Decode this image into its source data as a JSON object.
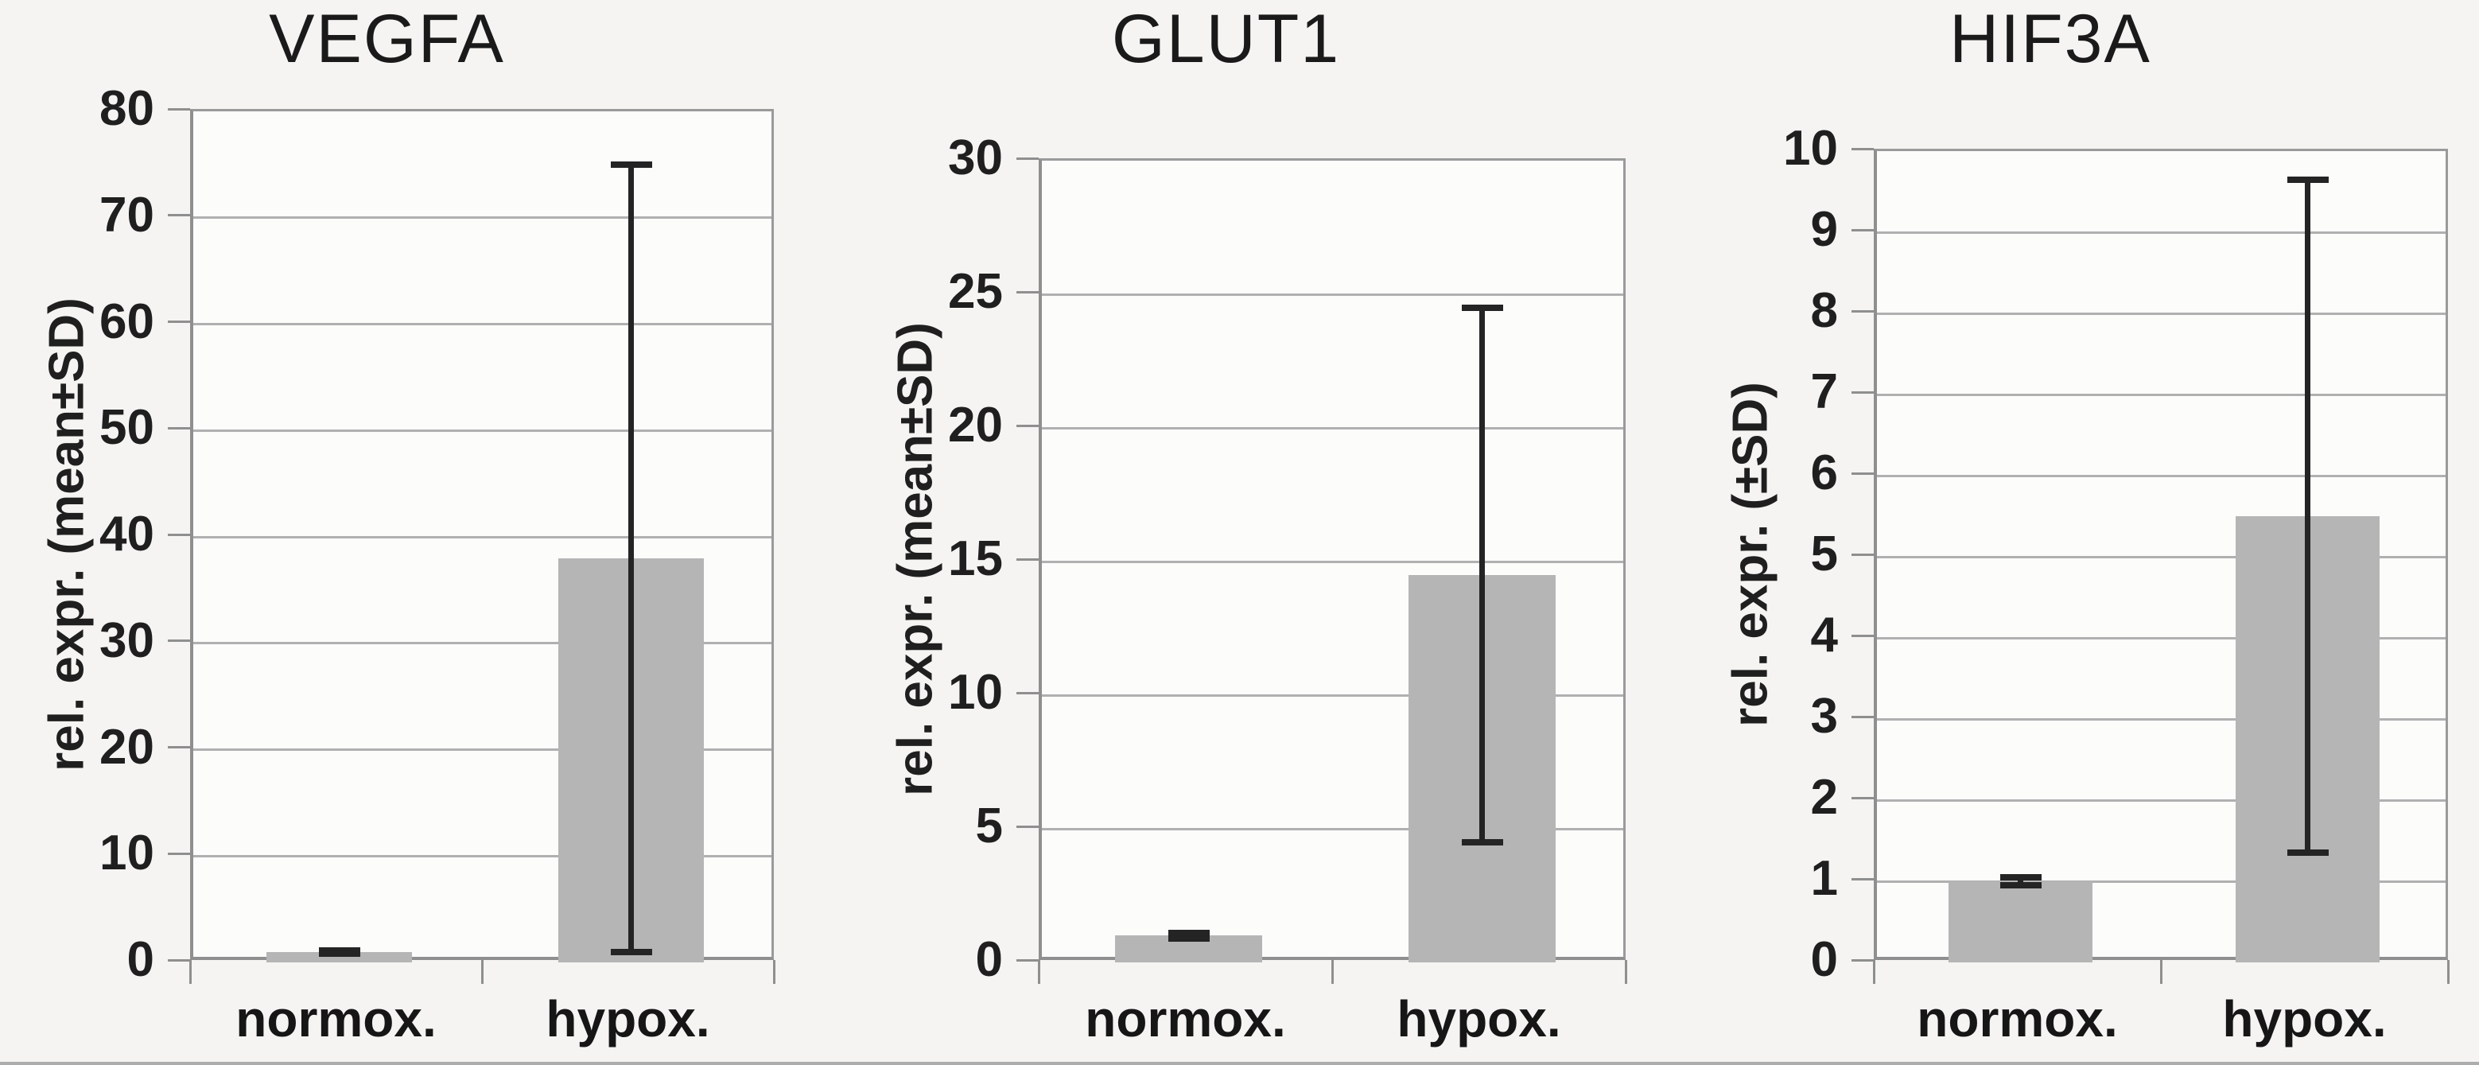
{
  "chart_data": [
    {
      "type": "bar",
      "title": "VEGFA",
      "ylabel": "rel. expr. (mean±SD)",
      "xlabel": "",
      "categories": [
        "normox.",
        "hypox."
      ],
      "values": [
        1,
        38
      ],
      "error_sd": [
        0.15,
        37
      ],
      "ylim": [
        0,
        80
      ],
      "yticks": [
        0,
        10,
        20,
        30,
        40,
        50,
        60,
        70,
        80
      ],
      "grid": true,
      "legend": false
    },
    {
      "type": "bar",
      "title": "GLUT1",
      "ylabel": "rel. expr. (mean±SD)",
      "xlabel": "",
      "categories": [
        "normox.",
        "hypox."
      ],
      "values": [
        1,
        14.5
      ],
      "error_sd": [
        0.1,
        10
      ],
      "ylim": [
        0,
        30
      ],
      "yticks": [
        0,
        5,
        10,
        15,
        20,
        25,
        30
      ],
      "grid": true,
      "legend": false
    },
    {
      "type": "bar",
      "title": "HIF3A",
      "ylabel": "rel. expr. (±SD)",
      "xlabel": "",
      "categories": [
        "normox.",
        "hypox."
      ],
      "values": [
        1,
        5.5
      ],
      "error_sd": [
        0.05,
        4.15
      ],
      "ylim": [
        0,
        10
      ],
      "yticks": [
        0,
        1,
        2,
        3,
        4,
        5,
        6,
        7,
        8,
        9,
        10
      ],
      "grid": true,
      "legend": false
    }
  ],
  "style": {
    "bar_color": "#b5b5b5",
    "error_color": "#242424",
    "grid_color": "#b0b0b0",
    "axis_color": "#8f8f8f",
    "text_color": "#1a1a1a",
    "background": "#f5f4f2",
    "plot_background": "#fcfcfb"
  }
}
